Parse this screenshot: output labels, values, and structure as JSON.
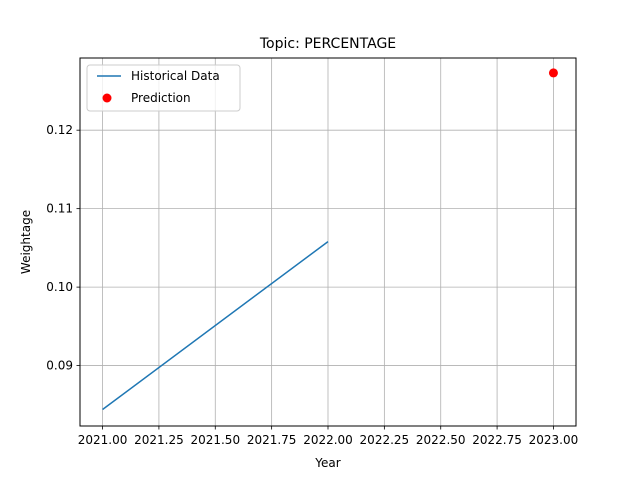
{
  "chart_data": {
    "type": "line",
    "title": "Topic: PERCENTAGE",
    "xlabel": "Year",
    "ylabel": "Weightage",
    "xlim": [
      2020.9,
      2023.1
    ],
    "ylim": [
      0.0823,
      0.1292
    ],
    "x_ticks": [
      2021.0,
      2021.25,
      2021.5,
      2021.75,
      2022.0,
      2022.25,
      2022.5,
      2022.75,
      2023.0
    ],
    "x_tick_labels": [
      "2021.00",
      "2021.25",
      "2021.50",
      "2021.75",
      "2022.00",
      "2022.25",
      "2022.50",
      "2022.75",
      "2023.00"
    ],
    "y_ticks": [
      0.09,
      0.1,
      0.11,
      0.12
    ],
    "y_tick_labels": [
      "0.09",
      "0.10",
      "0.11",
      "0.12"
    ],
    "grid": true,
    "legend_position": "top-left",
    "series": [
      {
        "name": "Historical Data",
        "kind": "line",
        "color": "#1f77b4",
        "x": [
          2021.0,
          2022.0
        ],
        "y": [
          0.0844,
          0.1058
        ]
      },
      {
        "name": "Prediction",
        "kind": "scatter",
        "color": "#ff0000",
        "x": [
          2023.0
        ],
        "y": [
          0.1273
        ]
      }
    ]
  }
}
